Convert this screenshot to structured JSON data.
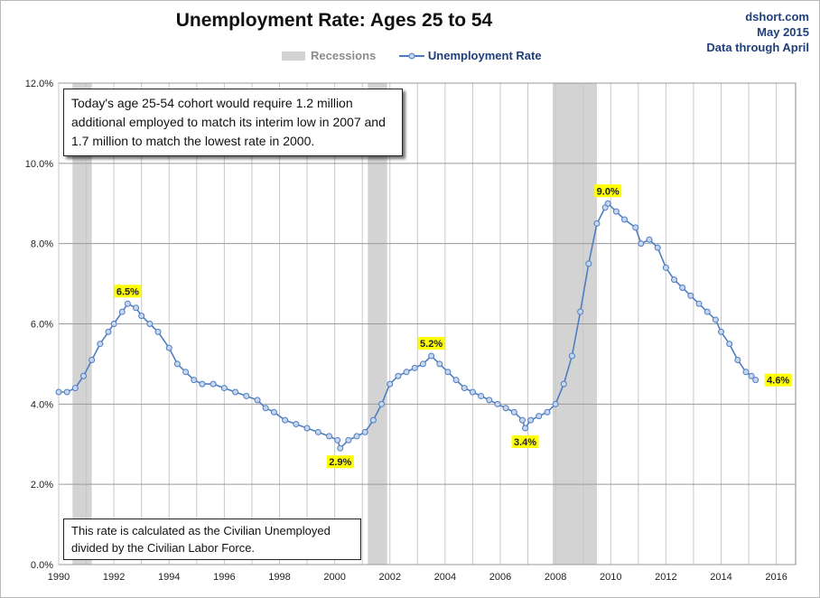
{
  "source": {
    "line1": "dshort.com",
    "line2": "May 2015",
    "line3": "Data through April"
  },
  "legend": {
    "recessions": "Recessions",
    "series": "Unemployment Rate"
  },
  "annotations": {
    "note_top": "Today's age 25-54 cohort would require 1.2 million additional employed to match its interim low in 2007 and 1.7 million to match the lowest rate in 2000.",
    "note_bottom": "This rate is calculated as the Civilian Unemployed divided by the Civilian Labor Force."
  },
  "chart_data": {
    "type": "line",
    "title": "Unemployment Rate: Ages 25 to 54",
    "xlabel": "",
    "ylabel": "",
    "xlim": [
      1990,
      2016.7
    ],
    "ylim": [
      0,
      12
    ],
    "y_ticks": [
      "0.0%",
      "2.0%",
      "4.0%",
      "6.0%",
      "8.0%",
      "10.0%",
      "12.0%"
    ],
    "x_ticks": [
      "1990",
      "1992",
      "1994",
      "1996",
      "1998",
      "2000",
      "2002",
      "2004",
      "2006",
      "2008",
      "2010",
      "2012",
      "2014",
      "2016"
    ],
    "grid": true,
    "legend_position": "top",
    "colors": {
      "line": "#4f7dc1",
      "marker_fill": "#c5d6ee",
      "recession": "#d3d3d3",
      "label_bg": "#ffff00"
    },
    "recessions": [
      [
        1990.5,
        1991.2
      ],
      [
        2001.2,
        2001.9
      ],
      [
        2007.9,
        2009.5
      ]
    ],
    "series": [
      {
        "name": "Unemployment Rate",
        "points": [
          [
            1990.0,
            4.3
          ],
          [
            1990.3,
            4.3
          ],
          [
            1990.6,
            4.4
          ],
          [
            1990.9,
            4.7
          ],
          [
            1991.2,
            5.1
          ],
          [
            1991.5,
            5.5
          ],
          [
            1991.8,
            5.8
          ],
          [
            1992.0,
            6.0
          ],
          [
            1992.3,
            6.3
          ],
          [
            1992.5,
            6.5
          ],
          [
            1992.8,
            6.4
          ],
          [
            1993.0,
            6.2
          ],
          [
            1993.3,
            6.0
          ],
          [
            1993.6,
            5.8
          ],
          [
            1994.0,
            5.4
          ],
          [
            1994.3,
            5.0
          ],
          [
            1994.6,
            4.8
          ],
          [
            1994.9,
            4.6
          ],
          [
            1995.2,
            4.5
          ],
          [
            1995.6,
            4.5
          ],
          [
            1996.0,
            4.4
          ],
          [
            1996.4,
            4.3
          ],
          [
            1996.8,
            4.2
          ],
          [
            1997.2,
            4.1
          ],
          [
            1997.5,
            3.9
          ],
          [
            1997.8,
            3.8
          ],
          [
            1998.2,
            3.6
          ],
          [
            1998.6,
            3.5
          ],
          [
            1999.0,
            3.4
          ],
          [
            1999.4,
            3.3
          ],
          [
            1999.8,
            3.2
          ],
          [
            2000.1,
            3.1
          ],
          [
            2000.2,
            2.9
          ],
          [
            2000.5,
            3.1
          ],
          [
            2000.8,
            3.2
          ],
          [
            2001.1,
            3.3
          ],
          [
            2001.4,
            3.6
          ],
          [
            2001.7,
            4.0
          ],
          [
            2002.0,
            4.5
          ],
          [
            2002.3,
            4.7
          ],
          [
            2002.6,
            4.8
          ],
          [
            2002.9,
            4.9
          ],
          [
            2003.2,
            5.0
          ],
          [
            2003.5,
            5.2
          ],
          [
            2003.8,
            5.0
          ],
          [
            2004.1,
            4.8
          ],
          [
            2004.4,
            4.6
          ],
          [
            2004.7,
            4.4
          ],
          [
            2005.0,
            4.3
          ],
          [
            2005.3,
            4.2
          ],
          [
            2005.6,
            4.1
          ],
          [
            2005.9,
            4.0
          ],
          [
            2006.2,
            3.9
          ],
          [
            2006.5,
            3.8
          ],
          [
            2006.8,
            3.6
          ],
          [
            2006.9,
            3.4
          ],
          [
            2007.1,
            3.6
          ],
          [
            2007.4,
            3.7
          ],
          [
            2007.7,
            3.8
          ],
          [
            2008.0,
            4.0
          ],
          [
            2008.3,
            4.5
          ],
          [
            2008.6,
            5.2
          ],
          [
            2008.9,
            6.3
          ],
          [
            2009.2,
            7.5
          ],
          [
            2009.5,
            8.5
          ],
          [
            2009.8,
            8.9
          ],
          [
            2009.9,
            9.0
          ],
          [
            2010.2,
            8.8
          ],
          [
            2010.5,
            8.6
          ],
          [
            2010.9,
            8.4
          ],
          [
            2011.1,
            8.0
          ],
          [
            2011.4,
            8.1
          ],
          [
            2011.7,
            7.9
          ],
          [
            2012.0,
            7.4
          ],
          [
            2012.3,
            7.1
          ],
          [
            2012.6,
            6.9
          ],
          [
            2012.9,
            6.7
          ],
          [
            2013.2,
            6.5
          ],
          [
            2013.5,
            6.3
          ],
          [
            2013.8,
            6.1
          ],
          [
            2014.0,
            5.8
          ],
          [
            2014.3,
            5.5
          ],
          [
            2014.6,
            5.1
          ],
          [
            2014.9,
            4.8
          ],
          [
            2015.1,
            4.7
          ],
          [
            2015.25,
            4.6
          ]
        ]
      }
    ],
    "data_labels": [
      {
        "x": 1992.5,
        "y": 6.5,
        "text": "6.5%",
        "pos": "above"
      },
      {
        "x": 2000.2,
        "y": 2.9,
        "text": "2.9%",
        "pos": "below"
      },
      {
        "x": 2003.5,
        "y": 5.2,
        "text": "5.2%",
        "pos": "above"
      },
      {
        "x": 2006.9,
        "y": 3.4,
        "text": "3.4%",
        "pos": "below"
      },
      {
        "x": 2009.9,
        "y": 9.0,
        "text": "9.0%",
        "pos": "above"
      },
      {
        "x": 2015.25,
        "y": 4.6,
        "text": "4.6%",
        "pos": "right"
      }
    ]
  }
}
